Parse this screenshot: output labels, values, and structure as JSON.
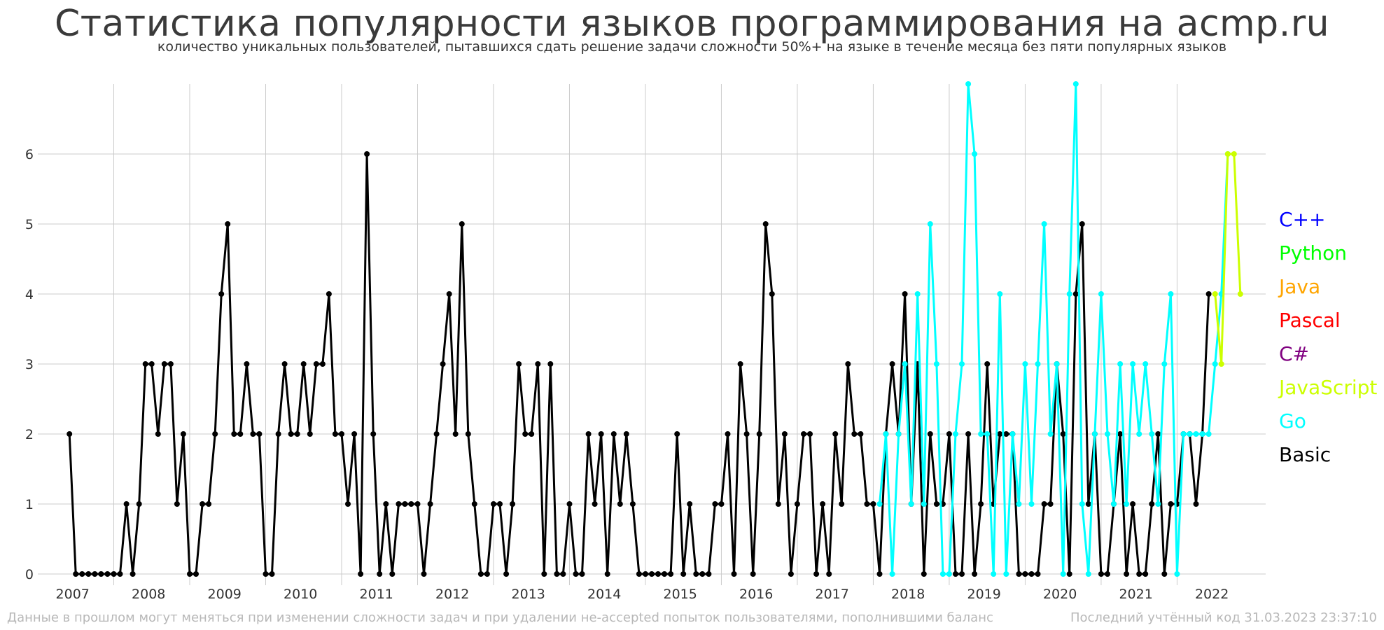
{
  "title": "Статистика популярности языков программирования на acmp.ru",
  "subtitle": "количество уникальных пользователей, пытавшихся сдать решение задачи сложности 50%+ на языке в течение месяца без пяти популярных языков",
  "footer": {
    "note": "Данные в прошлом могут меняться при изменении сложности задач и при удалении не-accepted попыток пользователями, пополнившими баланс",
    "last_code": "Последний учтённый код 31.03.2023 23:37:10"
  },
  "legend": [
    {
      "label": "C++",
      "color": "#0000ff"
    },
    {
      "label": "Python",
      "color": "#00ff00"
    },
    {
      "label": "Java",
      "color": "#ffa500"
    },
    {
      "label": "Pascal",
      "color": "#ff0000"
    },
    {
      "label": "C#",
      "color": "#800080"
    },
    {
      "label": "JavaScript",
      "color": "#ccff00"
    },
    {
      "label": "Go",
      "color": "#00ffff"
    },
    {
      "label": "Basic",
      "color": "#000000"
    }
  ],
  "chart_data": {
    "type": "line",
    "title": "Статистика популярности языков программирования на acmp.ru",
    "subtitle": "количество уникальных пользователей, пытавшихся сдать решение задачи сложности 50%+ на языке в течение месяца без пяти популярных языков",
    "x_unit": "month",
    "x_range": [
      "2007-01",
      "2023-03"
    ],
    "x_ticks": [
      "2007",
      "2008",
      "2009",
      "2010",
      "2011",
      "2012",
      "2013",
      "2014",
      "2015",
      "2016",
      "2017",
      "2018",
      "2019",
      "2020",
      "2021",
      "2022"
    ],
    "y_ticks": [
      0,
      1,
      2,
      3,
      4,
      5,
      6
    ],
    "ylim": [
      0,
      7
    ],
    "grid": true,
    "legend_position": "right",
    "series": [
      {
        "name": "Basic",
        "color": "#000000",
        "start": "2007-06",
        "values": [
          2,
          0,
          0,
          0,
          0,
          0,
          0,
          0,
          0,
          1,
          0,
          1,
          3,
          3,
          2,
          3,
          3,
          1,
          2,
          0,
          0,
          1,
          1,
          2,
          4,
          5,
          2,
          2,
          3,
          2,
          2,
          0,
          0,
          2,
          3,
          2,
          2,
          3,
          2,
          3,
          3,
          4,
          2,
          2,
          1,
          2,
          0,
          6,
          2,
          0,
          1,
          0,
          1,
          1,
          1,
          1,
          0,
          1,
          2,
          3,
          4,
          2,
          5,
          2,
          1,
          0,
          0,
          1,
          1,
          0,
          1,
          3,
          2,
          2,
          3,
          0,
          3,
          0,
          0,
          1,
          0,
          0,
          2,
          1,
          2,
          0,
          2,
          1,
          2,
          1,
          0,
          0,
          0,
          0,
          0,
          0,
          2,
          0,
          1,
          0,
          0,
          0,
          1,
          1,
          2,
          0,
          3,
          2,
          0,
          2,
          5,
          4,
          1,
          2,
          0,
          1,
          2,
          2,
          0,
          1,
          0,
          2,
          1,
          3,
          2,
          2,
          1,
          1,
          0,
          2,
          3,
          2,
          4,
          1,
          3,
          0,
          2,
          1,
          1,
          2,
          0,
          0,
          2,
          0,
          1,
          3,
          1,
          2,
          2,
          2,
          0,
          0,
          0,
          0,
          1,
          1,
          3,
          2,
          0,
          4,
          5,
          1,
          2,
          0,
          0,
          1,
          2,
          0,
          1,
          0,
          0,
          1,
          2,
          0,
          1,
          1,
          2,
          2,
          1,
          2,
          4
        ]
      },
      {
        "name": "Go",
        "color": "#00ffff",
        "start": "2018-02",
        "values": [
          1,
          2,
          0,
          2,
          3,
          1,
          4,
          1,
          5,
          3,
          0,
          0,
          2,
          3,
          7,
          6,
          2,
          2,
          0,
          4,
          0,
          2,
          1,
          3,
          1,
          3,
          5,
          2,
          3,
          0,
          4,
          7,
          1,
          0,
          2,
          4,
          2,
          1,
          3,
          1,
          3,
          2,
          3,
          2,
          1,
          3,
          4,
          0,
          2,
          2,
          2,
          2,
          2,
          3,
          4,
          6
        ]
      },
      {
        "name": "JavaScript",
        "color": "#ccff00",
        "start": "2022-07",
        "values": [
          4,
          3,
          6,
          6,
          4
        ]
      }
    ]
  }
}
